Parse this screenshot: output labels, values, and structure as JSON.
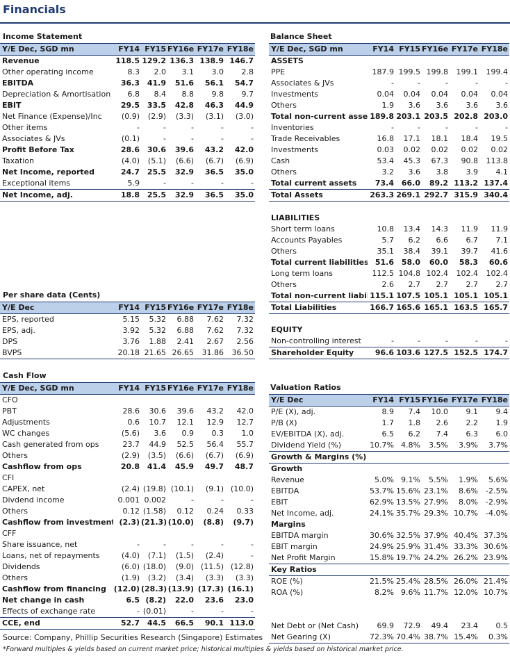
{
  "title": "Financials",
  "income": {
    "title": "Income Statement",
    "header": [
      "Y/E Dec, SGD mn",
      "FY14",
      "FY15",
      "FY16e",
      "FY17e",
      "FY18e"
    ],
    "rows": [
      {
        "label": "Revenue",
        "bold": true,
        "v": [
          "118.5",
          "129.2",
          "136.3",
          "138.9",
          "146.7"
        ]
      },
      {
        "label": "Other operating income",
        "v": [
          "8.3",
          "2.0",
          "3.1",
          "3.0",
          "2.8"
        ]
      },
      {
        "label": "EBITDA",
        "bold": true,
        "v": [
          "36.3",
          "41.9",
          "51.6",
          "56.1",
          "54.7"
        ]
      },
      {
        "label": "Depreciation & Amortisation",
        "v": [
          "6.8",
          "8.4",
          "8.8",
          "9.8",
          "9.7"
        ]
      },
      {
        "label": "EBIT",
        "bold": true,
        "v": [
          "29.5",
          "33.5",
          "42.8",
          "46.3",
          "44.9"
        ]
      },
      {
        "label": "Net Finance (Expense)/Inc",
        "v": [
          "(0.9)",
          "(2.9)",
          "(3.3)",
          "(3.1)",
          "(3.0)"
        ]
      },
      {
        "label": "Other items",
        "v": [
          "-",
          "-",
          "-",
          "-",
          "-"
        ]
      },
      {
        "label": "Associates & JVs",
        "v": [
          "(0.1)",
          "-",
          "-",
          "-",
          "-"
        ]
      },
      {
        "label": "Profit Before Tax",
        "bold": true,
        "v": [
          "28.6",
          "30.6",
          "39.6",
          "43.2",
          "42.0"
        ]
      },
      {
        "label": "Taxation",
        "v": [
          "(4.0)",
          "(5.1)",
          "(6.6)",
          "(6.7)",
          "(6.9)"
        ]
      },
      {
        "label": "Net Income, reported",
        "bold": true,
        "v": [
          "24.7",
          "25.5",
          "32.9",
          "36.5",
          "35.0"
        ]
      },
      {
        "label": "Exceptional items",
        "v": [
          "5.9",
          "-",
          "-",
          "-",
          "-"
        ]
      },
      {
        "label": "Net Income, adj.",
        "bold": true,
        "lineTop": true,
        "lineBot": true,
        "v": [
          "18.8",
          "25.5",
          "32.9",
          "36.5",
          "35.0"
        ]
      }
    ]
  },
  "balance": {
    "title": "Balance Sheet",
    "header": [
      "Y/E Dec, SGD mn",
      "FY14",
      "FY15",
      "FY16e",
      "FY17e",
      "FY18e"
    ],
    "rows": [
      {
        "label": "ASSETS",
        "bold": true,
        "v": [
          "",
          "",
          "",
          "",
          ""
        ]
      },
      {
        "label": "PPE",
        "v": [
          "187.9",
          "199.5",
          "199.8",
          "199.1",
          "199.4"
        ]
      },
      {
        "label": "Associates & JVs",
        "v": [
          "-",
          "-",
          "-",
          "-",
          "-"
        ]
      },
      {
        "label": "Investments",
        "v": [
          "0.04",
          "0.04",
          "0.04",
          "0.04",
          "0.04"
        ]
      },
      {
        "label": "Others",
        "v": [
          "1.9",
          "3.6",
          "3.6",
          "3.6",
          "3.6"
        ]
      },
      {
        "label": "Total non-current assets",
        "bold": true,
        "v": [
          "189.8",
          "203.1",
          "203.5",
          "202.8",
          "203.0"
        ]
      },
      {
        "label": "Inventories",
        "v": [
          "-",
          "-",
          "-",
          "-",
          "-"
        ]
      },
      {
        "label": "Trade Receivables",
        "v": [
          "16.8",
          "17.1",
          "18.1",
          "18.4",
          "19.5"
        ]
      },
      {
        "label": "Investments",
        "v": [
          "0.03",
          "0.02",
          "0.02",
          "0.02",
          "0.02"
        ]
      },
      {
        "label": "Cash",
        "v": [
          "53.4",
          "45.3",
          "67.3",
          "90.8",
          "113.8"
        ]
      },
      {
        "label": "Others",
        "v": [
          "3.2",
          "3.6",
          "3.8",
          "3.9",
          "4.1"
        ]
      },
      {
        "label": "Total current assets",
        "bold": true,
        "v": [
          "73.4",
          "66.0",
          "89.2",
          "113.2",
          "137.4"
        ]
      },
      {
        "label": "Total Assets",
        "bold": true,
        "lineTop": true,
        "lineBot": true,
        "v": [
          "263.3",
          "269.1",
          "292.7",
          "315.9",
          "340.4"
        ]
      },
      {
        "label": "",
        "blank": true,
        "v": [
          "",
          "",
          "",
          "",
          ""
        ]
      },
      {
        "label": "LIABILITIES",
        "bold": true,
        "v": [
          "",
          "",
          "",
          "",
          ""
        ]
      },
      {
        "label": "Short term loans",
        "v": [
          "10.8",
          "13.4",
          "14.3",
          "11.9",
          "11.9"
        ]
      },
      {
        "label": "Accounts Payables",
        "v": [
          "5.7",
          "6.2",
          "6.6",
          "6.7",
          "7.1"
        ]
      },
      {
        "label": "Others",
        "v": [
          "35.1",
          "38.4",
          "39.1",
          "39.7",
          "41.6"
        ]
      },
      {
        "label": "Total current liabilities",
        "bold": true,
        "v": [
          "51.6",
          "58.0",
          "60.0",
          "58.3",
          "60.6"
        ]
      },
      {
        "label": "Long term loans",
        "v": [
          "112.5",
          "104.8",
          "102.4",
          "102.4",
          "102.4"
        ]
      },
      {
        "label": "Others",
        "v": [
          "2.6",
          "2.7",
          "2.7",
          "2.7",
          "2.7"
        ]
      },
      {
        "label": "Total non-current liabilities",
        "bold": true,
        "v": [
          "115.1",
          "107.5",
          "105.1",
          "105.1",
          "105.1"
        ]
      },
      {
        "label": "Total Liabilities",
        "bold": true,
        "lineTop": true,
        "lineBot": true,
        "v": [
          "166.7",
          "165.6",
          "165.1",
          "163.5",
          "165.7"
        ]
      },
      {
        "label": "",
        "blank": true,
        "v": [
          "",
          "",
          "",
          "",
          ""
        ]
      },
      {
        "label": "EQUITY",
        "bold": true,
        "v": [
          "",
          "",
          "",
          "",
          ""
        ]
      },
      {
        "label": "Non-controlling interest",
        "v": [
          "-",
          "-",
          "-",
          "-",
          "-"
        ]
      },
      {
        "label": "Shareholder Equity",
        "bold": true,
        "lineTop": true,
        "lineBot": true,
        "v": [
          "96.6",
          "103.6",
          "127.5",
          "152.5",
          "174.7"
        ]
      }
    ]
  },
  "per_share": {
    "title": "Per share data (Cents)",
    "header": [
      "Y/E Dec",
      "FY14",
      "FY15",
      "FY16e",
      "FY17e",
      "FY18e"
    ],
    "rows": [
      {
        "label": "EPS, reported",
        "v": [
          "5.15",
          "5.32",
          "6.88",
          "7.62",
          "7.32"
        ]
      },
      {
        "label": "EPS, adj.",
        "v": [
          "3.92",
          "5.32",
          "6.88",
          "7.62",
          "7.32"
        ]
      },
      {
        "label": "DPS",
        "v": [
          "3.76",
          "1.88",
          "2.41",
          "2.67",
          "2.56"
        ]
      },
      {
        "label": "BVPS",
        "lineBot": true,
        "v": [
          "20.18",
          "21.65",
          "26.65",
          "31.86",
          "36.50"
        ]
      }
    ]
  },
  "cash_flow": {
    "title": "Cash Flow",
    "header": [
      "Y/E Dec, SGD mn",
      "FY14",
      "FY15",
      "FY16e",
      "FY17e",
      "FY18e"
    ],
    "rows": [
      {
        "label": "CFO",
        "v": [
          "",
          "",
          "",
          "",
          ""
        ]
      },
      {
        "label": "PBT",
        "v": [
          "28.6",
          "30.6",
          "39.6",
          "43.2",
          "42.0"
        ]
      },
      {
        "label": "Adjustments",
        "v": [
          "0.6",
          "10.7",
          "12.1",
          "12.9",
          "12.7"
        ]
      },
      {
        "label": "WC changes",
        "v": [
          "(5.6)",
          "3.6",
          "0.9",
          "0.3",
          "1.0"
        ]
      },
      {
        "label": "Cash generated from ops",
        "v": [
          "23.7",
          "44.9",
          "52.5",
          "56.4",
          "55.7"
        ]
      },
      {
        "label": "Others",
        "v": [
          "(2.9)",
          "(3.5)",
          "(6.6)",
          "(6.7)",
          "(6.9)"
        ]
      },
      {
        "label": "Cashflow from ops",
        "bold": true,
        "v": [
          "20.8",
          "41.4",
          "45.9",
          "49.7",
          "48.7"
        ]
      },
      {
        "label": "CFI",
        "v": [
          "",
          "",
          "",
          "",
          ""
        ]
      },
      {
        "label": "CAPEX, net",
        "v": [
          "(2.4)",
          "(19.8)",
          "(10.1)",
          "(9.1)",
          "(10.0)"
        ]
      },
      {
        "label": "Divdend income",
        "v": [
          "0.001",
          "0.002",
          "-",
          "-",
          "-"
        ]
      },
      {
        "label": "Others",
        "v": [
          "0.12",
          "(1.58)",
          "0.12",
          "0.24",
          "0.33"
        ]
      },
      {
        "label": "Cashflow from investments",
        "bold": true,
        "v": [
          "(2.3)",
          "(21.3)",
          "(10.0)",
          "(8.8)",
          "(9.7)"
        ]
      },
      {
        "label": "CFF",
        "v": [
          "",
          "",
          "",
          "",
          ""
        ]
      },
      {
        "label": "Share issuance, net",
        "v": [
          "-",
          "-",
          "-",
          "-",
          "-"
        ]
      },
      {
        "label": "Loans, net of repayments",
        "v": [
          "(4.0)",
          "(7.1)",
          "(1.5)",
          "(2.4)",
          "-"
        ]
      },
      {
        "label": "Dividends",
        "v": [
          "(6.0)",
          "(18.0)",
          "(9.0)",
          "(11.5)",
          "(12.8)"
        ]
      },
      {
        "label": "Others",
        "v": [
          "(1.9)",
          "(3.2)",
          "(3.4)",
          "(3.3)",
          "(3.3)"
        ]
      },
      {
        "label": "Cashflow from financing",
        "bold": true,
        "v": [
          "(12.0)",
          "(28.3)",
          "(13.9)",
          "(17.3)",
          "(16.1)"
        ]
      },
      {
        "label": "Net change in cash",
        "bold": true,
        "v": [
          "6.5",
          "(8.2)",
          "22.0",
          "23.6",
          "23.0"
        ]
      },
      {
        "label": "Effects of exchange rate",
        "v": [
          "-",
          "(0.01)",
          "-",
          "-",
          "-"
        ]
      },
      {
        "label": "CCE, end",
        "bold": true,
        "lineTop": true,
        "lineBot": true,
        "v": [
          "52.7",
          "44.5",
          "66.5",
          "90.1",
          "113.0"
        ]
      }
    ]
  },
  "valuation": {
    "title": "Valuation Ratios",
    "header": [
      "Y/E Dec",
      "FY14",
      "FY15",
      "FY16e",
      "FY17e",
      "FY18e"
    ],
    "rows": [
      {
        "label": "P/E (X), adj.",
        "v": [
          "8.9",
          "7.4",
          "10.0",
          "9.1",
          "9.4"
        ]
      },
      {
        "label": "P/B (X)",
        "v": [
          "1.7",
          "1.8",
          "2.6",
          "2.2",
          "1.9"
        ]
      },
      {
        "label": "EV/EBITDA (X), adj.",
        "v": [
          "6.5",
          "6.2",
          "7.4",
          "6.3",
          "6.0"
        ]
      },
      {
        "label": "Dividend Yield (%)",
        "v": [
          "10.7%",
          "4.8%",
          "3.5%",
          "3.9%",
          "3.7%"
        ]
      },
      {
        "label": "Growth & Margins (%)",
        "subhdr": true,
        "v": [
          "",
          "",
          "",
          "",
          ""
        ]
      },
      {
        "label": "Growth",
        "bold": true,
        "v": [
          "",
          "",
          "",
          "",
          ""
        ]
      },
      {
        "label": "Revenue",
        "v": [
          "5.0%",
          "9.1%",
          "5.5%",
          "1.9%",
          "5.6%"
        ]
      },
      {
        "label": "EBITDA",
        "v": [
          "53.7%",
          "15.6%",
          "23.1%",
          "8.6%",
          "-2.5%"
        ]
      },
      {
        "label": "EBIT",
        "v": [
          "62.9%",
          "13.5%",
          "27.9%",
          "8.0%",
          "-2.9%"
        ]
      },
      {
        "label": "Net Income, adj.",
        "v": [
          "24.1%",
          "35.7%",
          "29.3%",
          "10.7%",
          "-4.0%"
        ]
      },
      {
        "label": "Margins",
        "bold": true,
        "v": [
          "",
          "",
          "",
          "",
          ""
        ]
      },
      {
        "label": "EBITDA margin",
        "v": [
          "30.6%",
          "32.5%",
          "37.9%",
          "40.4%",
          "37.3%"
        ]
      },
      {
        "label": "EBIT margin",
        "v": [
          "24.9%",
          "25.9%",
          "31.4%",
          "33.3%",
          "30.6%"
        ]
      },
      {
        "label": "Net Profit Margin",
        "v": [
          "15.8%",
          "19.7%",
          "24.2%",
          "26.2%",
          "23.9%"
        ]
      },
      {
        "label": "Key Ratios",
        "subhdr": true,
        "v": [
          "",
          "",
          "",
          "",
          ""
        ]
      },
      {
        "label": "ROE (%)",
        "v": [
          "21.5%",
          "25.4%",
          "28.5%",
          "26.0%",
          "21.4%"
        ]
      },
      {
        "label": "ROA (%)",
        "v": [
          "8.2%",
          "9.6%",
          "11.7%",
          "12.0%",
          "10.7%"
        ]
      },
      {
        "label": "",
        "blank": true,
        "v": [
          "",
          "",
          "",
          "",
          ""
        ]
      },
      {
        "label": "",
        "blank": true,
        "v": [
          "",
          "",
          "",
          "",
          ""
        ]
      },
      {
        "label": "Net Debt or (Net Cash)",
        "v": [
          "69.9",
          "72.9",
          "49.4",
          "23.4",
          "0.5"
        ]
      },
      {
        "label": "Net Gearing (X)",
        "lineBot": true,
        "v": [
          "72.3%",
          "70.4%",
          "38.7%",
          "15.4%",
          "0.3%"
        ]
      }
    ]
  },
  "source": "Source: Company, Phillip Securities Research (Singapore) Estimates",
  "footnote": "*Forward multiples & yields based on current market price; historical multiples & yields based on historical market price.",
  "colors": {
    "accent": "#1e3a6e",
    "header_fill": "#bcd0ea"
  }
}
